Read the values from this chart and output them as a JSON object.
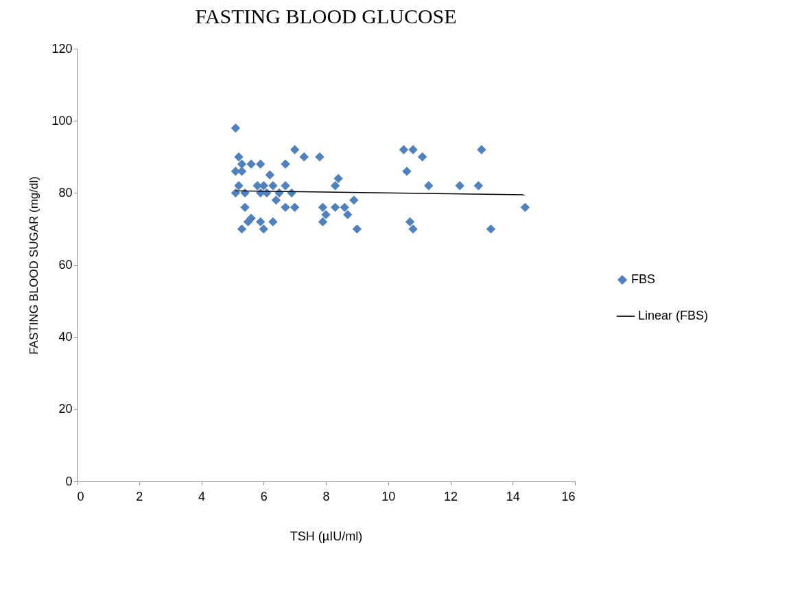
{
  "chart_data": {
    "type": "scatter",
    "title": "FASTING BLOOD GLUCOSE",
    "xlabel": "TSH (µIU/ml)",
    "ylabel": "FASTING BLOOD SUGAR (mg/dl)",
    "xlim": [
      0,
      16
    ],
    "xticks": [
      0,
      2,
      4,
      6,
      8,
      10,
      12,
      14,
      16
    ],
    "ylim": [
      0,
      120
    ],
    "yticks": [
      0,
      20,
      40,
      60,
      80,
      100,
      120
    ],
    "grid": false,
    "legend": "right",
    "series": [
      {
        "name": "FBS",
        "color": "#4f81bd",
        "marker": "diamond",
        "x": [
          5.1,
          5.2,
          5.1,
          5.3,
          5.3,
          5.6,
          5.9,
          5.2,
          5.1,
          5.4,
          5.8,
          5.9,
          6.0,
          6.1,
          6.2,
          6.3,
          6.4,
          6.5,
          6.7,
          6.9,
          6.7,
          7.0,
          7.3,
          5.4,
          6.7,
          7.0,
          5.3,
          5.5,
          5.6,
          5.9,
          6.0,
          6.3,
          7.8,
          8.3,
          8.4,
          7.9,
          8.3,
          8.6,
          8.0,
          7.9,
          8.7,
          8.9,
          9.0,
          10.5,
          10.8,
          11.1,
          10.6,
          11.3,
          12.3,
          12.9,
          13.0,
          10.7,
          10.8,
          13.3,
          14.4
        ],
        "values": [
          98,
          90,
          86,
          88,
          86,
          88,
          88,
          82,
          80,
          80,
          82,
          80,
          82,
          80,
          85,
          82,
          78,
          80,
          82,
          80,
          88,
          92,
          90,
          76,
          76,
          76,
          70,
          72,
          73,
          72,
          70,
          72,
          90,
          82,
          84,
          76,
          76,
          76,
          74,
          72,
          74,
          78,
          70,
          92,
          92,
          90,
          86,
          82,
          82,
          82,
          92,
          72,
          70,
          70,
          76
        ]
      },
      {
        "name": "Linear (FBS)",
        "color": "#000000",
        "type": "line",
        "marker": "none",
        "line_style": "solid",
        "x": [
          5.1,
          14.4
        ],
        "values": [
          80.6,
          79.5
        ]
      }
    ]
  }
}
